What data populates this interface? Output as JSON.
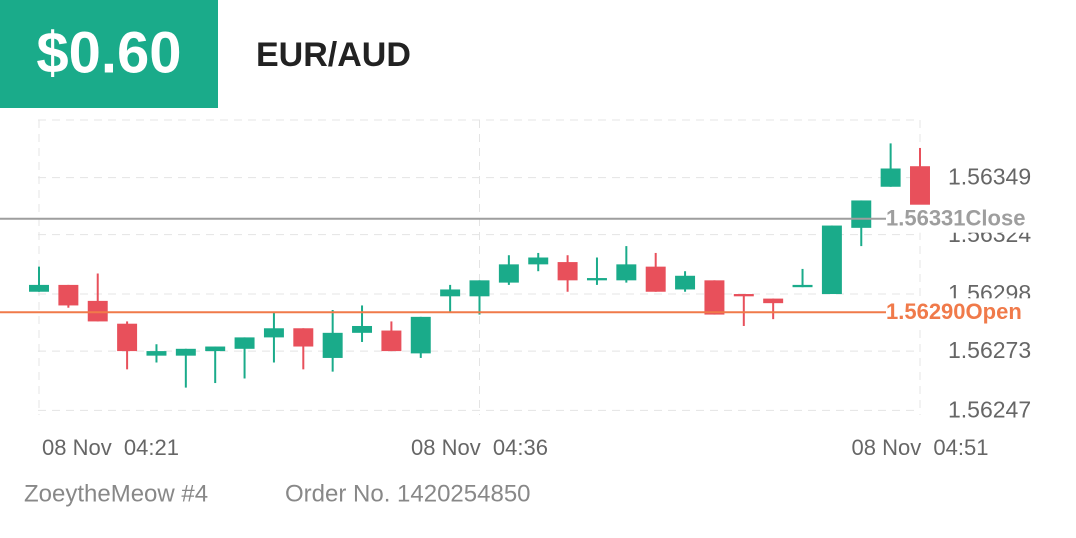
{
  "header": {
    "badge": "$0.60",
    "symbol": "EUR/AUD"
  },
  "footer": {
    "user": "ZoeytheMeow #4",
    "order": "Order No. 1420254850"
  },
  "chart_data": {
    "type": "candlestick",
    "categories": [
      "08 Nov  04:21",
      null,
      null,
      null,
      null,
      null,
      null,
      null,
      null,
      null,
      null,
      null,
      null,
      null,
      null,
      "08 Nov  04:36",
      null,
      null,
      null,
      null,
      null,
      null,
      null,
      null,
      null,
      null,
      null,
      null,
      null,
      null,
      "08 Nov  04:51"
    ],
    "open": [
      1.56299,
      1.56302,
      1.56295,
      1.56285,
      1.56271,
      1.56271,
      1.56273,
      1.56274,
      1.56279,
      1.56283,
      1.5627,
      1.56281,
      1.56282,
      1.56272,
      1.56297,
      1.56297,
      1.56303,
      1.56311,
      1.56312,
      1.56304,
      1.56304,
      1.5631,
      1.563,
      1.56304,
      1.56298,
      1.56296,
      1.56301,
      1.56298,
      1.56327,
      1.56345,
      1.56354
    ],
    "high": [
      1.5631,
      1.56302,
      1.56307,
      1.56286,
      1.56276,
      1.56274,
      1.56275,
      1.56279,
      1.5629,
      1.56283,
      1.56291,
      1.56293,
      1.56286,
      1.56288,
      1.56302,
      1.56304,
      1.56315,
      1.56316,
      1.56315,
      1.56314,
      1.56319,
      1.56316,
      1.56308,
      1.56304,
      1.56298,
      1.56296,
      1.56309,
      1.56328,
      1.56339,
      1.56364,
      1.56362
    ],
    "low": [
      1.56299,
      1.56292,
      1.56286,
      1.56265,
      1.56268,
      1.56257,
      1.56259,
      1.56261,
      1.56268,
      1.56265,
      1.56264,
      1.56277,
      1.56273,
      1.5627,
      1.5629,
      1.56289,
      1.56302,
      1.56308,
      1.56299,
      1.56302,
      1.56303,
      1.56299,
      1.56299,
      1.56289,
      1.56284,
      1.56287,
      1.56301,
      1.56298,
      1.56319,
      1.56345,
      1.56337
    ],
    "close": [
      1.56302,
      1.56293,
      1.56286,
      1.56273,
      1.56273,
      1.56274,
      1.56275,
      1.56279,
      1.56283,
      1.56275,
      1.56281,
      1.56284,
      1.56273,
      1.56288,
      1.563,
      1.56304,
      1.56311,
      1.56314,
      1.56304,
      1.56305,
      1.56311,
      1.56299,
      1.56306,
      1.56289,
      1.56297,
      1.56294,
      1.56302,
      1.56328,
      1.56339,
      1.56353,
      1.56337
    ],
    "up_color": "#1aab8a",
    "down_color": "#e8505b",
    "ylim": [
      1.56245,
      1.56376
    ],
    "yticks": [
      1.56247,
      1.56273,
      1.56298,
      1.56324,
      1.56349
    ],
    "grid": true,
    "reference_lines": [
      {
        "value": 1.56331,
        "label": "1.56331",
        "name": "Close",
        "color": "#9e9e9e"
      },
      {
        "value": 1.5629,
        "label": "1.56290",
        "name": "Open",
        "color": "#f07a4a"
      }
    ]
  }
}
